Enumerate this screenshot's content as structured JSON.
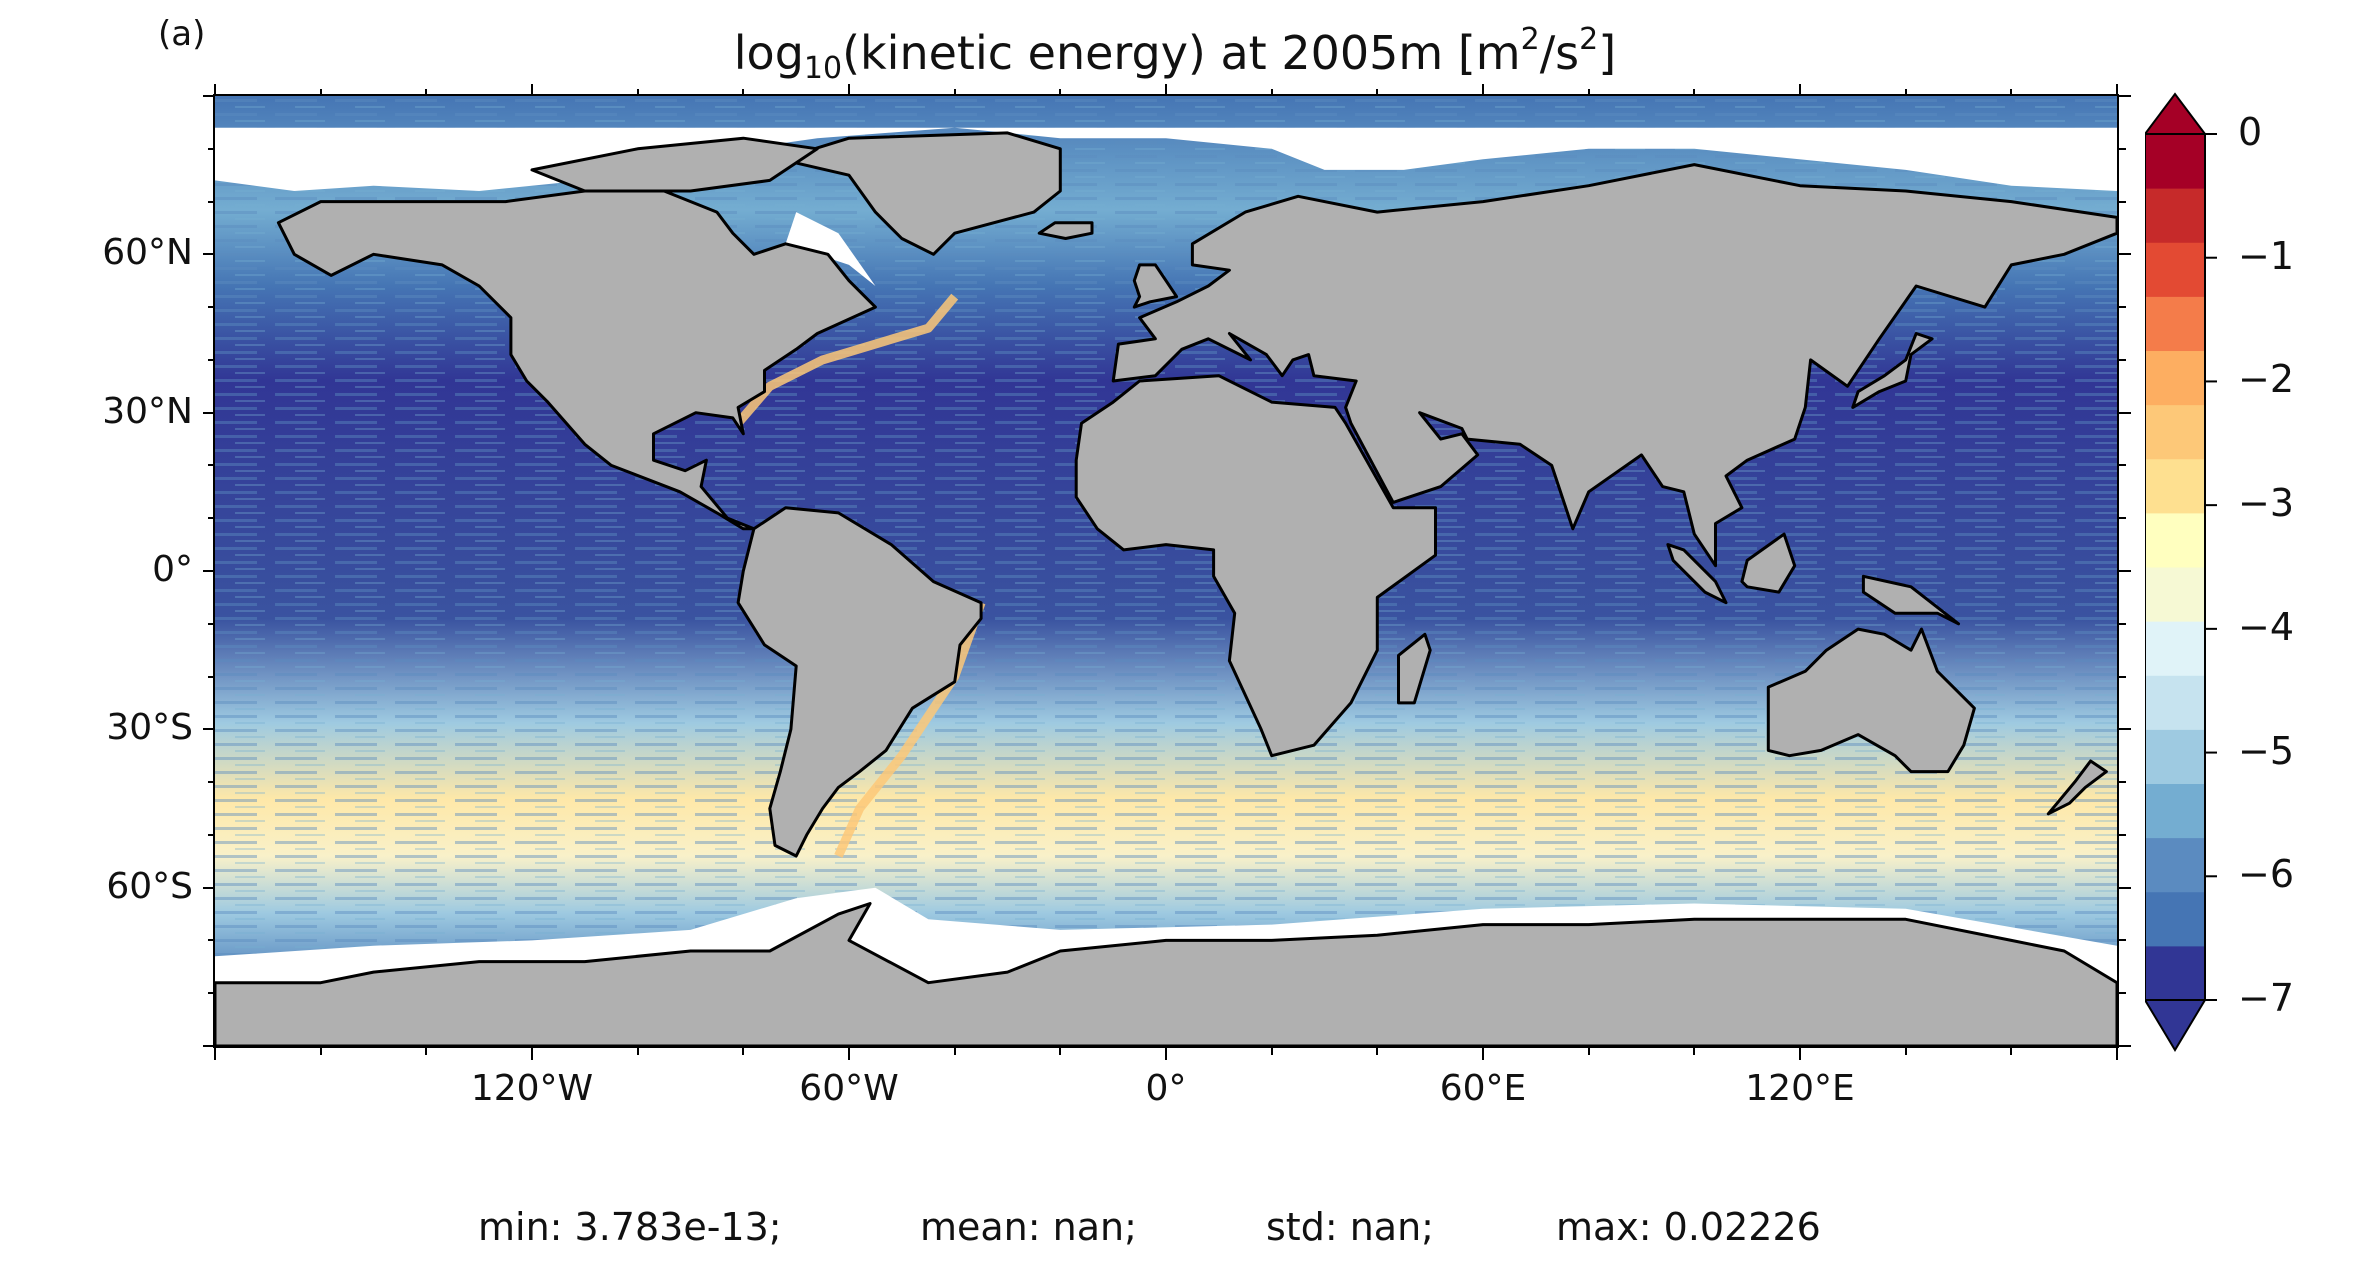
{
  "panel_label": "(a)",
  "title": {
    "prefix": "log",
    "prefix_sub": "10",
    "main": "(kinetic energy) at 2005m [m",
    "sup1": "2",
    "mid": "/s",
    "sup2": "2",
    "end": "]"
  },
  "map": {
    "projection": "PlateCarree",
    "land_color": "#b0b0b0",
    "ice_color": "#ffffff",
    "coast_color": "#000000",
    "lon_range": [
      -180,
      180
    ],
    "lat_range": [
      -90,
      90
    ]
  },
  "axes": {
    "y_ticks": [
      "60°N",
      "30°N",
      "0°",
      "30°S",
      "60°S"
    ],
    "x_ticks": [
      "120°W",
      "60°W",
      "0°",
      "60°E",
      "120°E"
    ]
  },
  "colorbar": {
    "ticks": [
      "0",
      "−1",
      "−2",
      "−3",
      "−4",
      "−5",
      "−6",
      "−7"
    ],
    "range": [
      -7,
      0
    ],
    "extend": "both",
    "colors": [
      "#313695",
      "#4575b4",
      "#5b8bc0",
      "#74add1",
      "#9ecae1",
      "#c6e3ef",
      "#e0f3f8",
      "#f6f9d4",
      "#ffffbf",
      "#fee090",
      "#fdc878",
      "#fdae61",
      "#f47c4a",
      "#e34a33",
      "#c62a2a",
      "#a50026"
    ]
  },
  "stats": {
    "min": "min: 3.783e-13;",
    "mean": "mean: nan;",
    "std": "std: nan;",
    "max": "max: 0.02226"
  }
}
